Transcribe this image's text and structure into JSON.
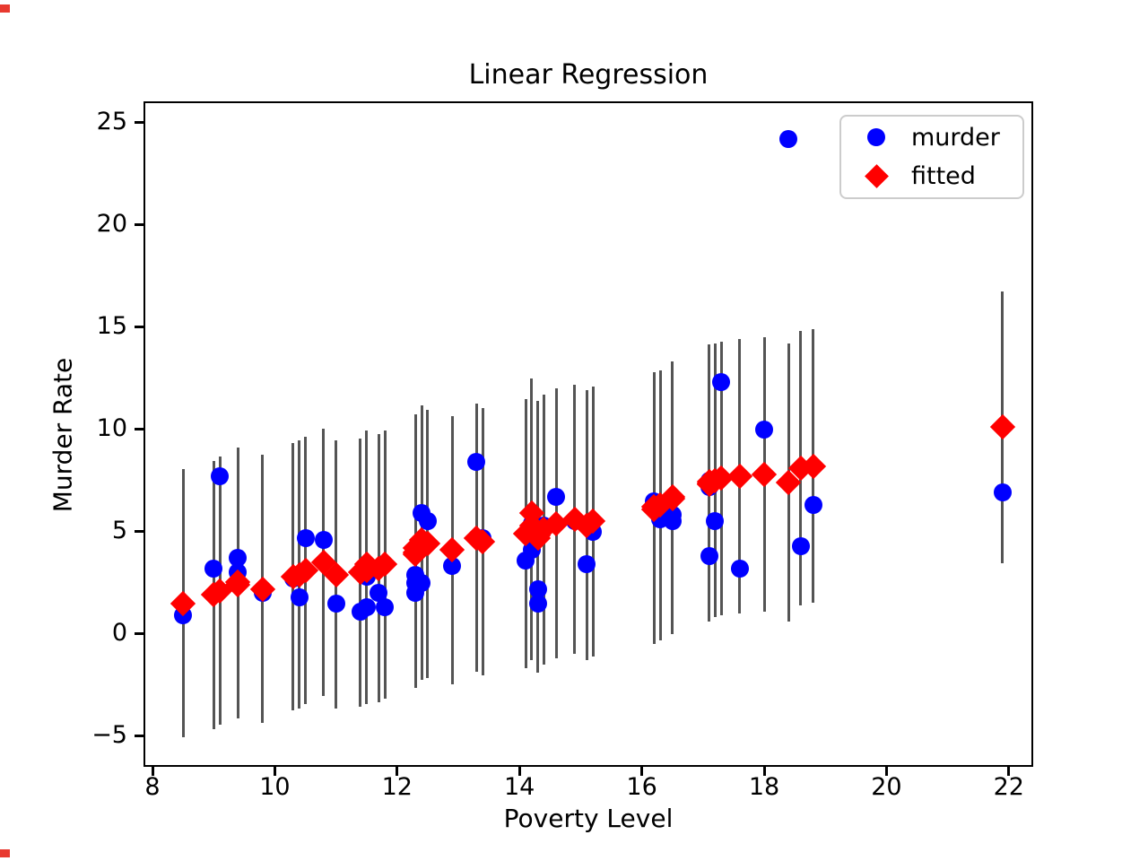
{
  "title": "Linear Regression",
  "axes": {
    "xlabel": "Poverty Level",
    "ylabel": "Murder Rate",
    "xtick_values": [
      8,
      10,
      12,
      14,
      16,
      18,
      20,
      22
    ],
    "xtick_labels": [
      "8",
      "10",
      "12",
      "14",
      "16",
      "18",
      "20",
      "22"
    ],
    "ytick_values": [
      -5,
      0,
      5,
      10,
      15,
      20,
      25
    ],
    "ytick_labels": [
      "−5",
      "0",
      "5",
      "10",
      "15",
      "20",
      "25"
    ],
    "xlim": [
      7.88,
      22.41
    ],
    "ylim": [
      -6.46,
      26.0
    ],
    "grid": false
  },
  "legend": {
    "position": "upper right",
    "items": [
      {
        "label": "murder",
        "marker": "circle-icon",
        "color": "#0000ff"
      },
      {
        "label": "fitted",
        "marker": "diamond-icon",
        "color": "#ff0000"
      }
    ]
  },
  "colors": {
    "murder": "#0000ff",
    "fitted": "#ff0000",
    "error_bar": "#545454",
    "spine": "#000000",
    "background": "#ffffff"
  },
  "chart_data": {
    "type": "scatter",
    "title": "Linear Regression",
    "xlabel": "Poverty Level",
    "ylabel": "Murder Rate",
    "xlim": [
      7.88,
      22.41
    ],
    "ylim": [
      -6.46,
      26.0
    ],
    "legend_position": "upper right",
    "series_info": [
      {
        "name": "murder",
        "marker": "circle",
        "color": "#0000ff"
      },
      {
        "name": "fitted",
        "marker": "diamond",
        "color": "#ff0000",
        "has_error_bars": true
      }
    ],
    "x": [
      8.5,
      9.0,
      9.1,
      9.4,
      9.4,
      9.8,
      10.3,
      10.4,
      10.5,
      10.8,
      11.0,
      11.4,
      11.5,
      11.5,
      11.7,
      11.8,
      12.3,
      12.3,
      12.3,
      12.4,
      12.4,
      12.5,
      12.9,
      13.3,
      13.4,
      14.1,
      14.2,
      14.2,
      14.3,
      14.3,
      14.4,
      14.6,
      14.9,
      15.1,
      15.2,
      16.2,
      16.2,
      16.3,
      16.5,
      16.5,
      17.1,
      17.1,
      17.1,
      17.2,
      17.3,
      17.6,
      18.0,
      18.4,
      18.6,
      18.8,
      21.9
    ],
    "murder": [
      0.9,
      3.2,
      7.7,
      3.0,
      3.7,
      2.0,
      2.7,
      1.8,
      4.7,
      4.6,
      1.5,
      1.1,
      1.3,
      2.8,
      2.0,
      1.3,
      2.0,
      2.5,
      2.9,
      2.5,
      5.9,
      5.5,
      3.3,
      8.4,
      4.7,
      3.6,
      4.1,
      5.4,
      1.5,
      2.2,
      5.3,
      6.7,
      5.5,
      3.4,
      5.0,
      6.3,
      6.5,
      5.6,
      5.5,
      5.8,
      3.8,
      7.2,
      7.5,
      5.5,
      12.3,
      3.2,
      10.0,
      24.2,
      4.3,
      6.3,
      6.9
    ],
    "fitted": [
      1.5,
      1.9,
      2.1,
      2.4,
      2.55,
      2.2,
      2.8,
      2.9,
      3.1,
      3.5,
      2.9,
      3.0,
      3.1,
      3.4,
      3.2,
      3.4,
      3.9,
      4.0,
      4.2,
      4.3,
      4.6,
      4.4,
      4.1,
      4.7,
      4.5,
      4.9,
      5.9,
      5.3,
      4.8,
      4.7,
      5.1,
      5.4,
      5.6,
      5.3,
      5.5,
      6.1,
      6.2,
      6.3,
      6.6,
      6.7,
      7.3,
      7.35,
      7.45,
      7.5,
      7.6,
      7.7,
      7.8,
      7.4,
      8.1,
      8.2,
      10.1
    ],
    "yerr": [
      6.55,
      6.55,
      6.55,
      6.55,
      6.55,
      6.55,
      6.55,
      6.55,
      6.55,
      6.55,
      6.55,
      6.55,
      6.55,
      6.55,
      6.55,
      6.55,
      6.55,
      6.55,
      6.55,
      6.55,
      6.55,
      6.55,
      6.55,
      6.55,
      6.55,
      6.6,
      6.6,
      6.6,
      6.6,
      6.6,
      6.6,
      6.6,
      6.6,
      6.6,
      6.6,
      6.6,
      6.6,
      6.6,
      6.6,
      6.6,
      6.7,
      6.7,
      6.7,
      6.7,
      6.7,
      6.7,
      6.7,
      6.8,
      6.7,
      6.7,
      6.65
    ]
  }
}
